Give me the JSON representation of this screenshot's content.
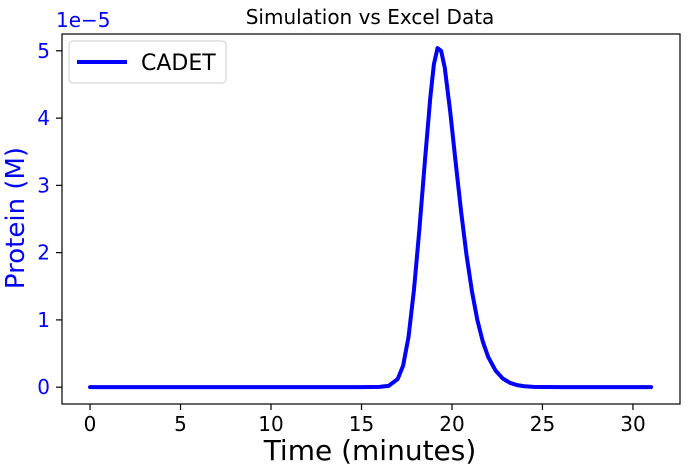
{
  "chart_data": {
    "type": "line",
    "title": "Simulation vs Excel Data",
    "xlabel": "Time (minutes)",
    "ylabel": "Protein (M)",
    "y_offset_text": "1e−5",
    "xlim": [
      -1.55,
      32.6
    ],
    "ylim": [
      -0.25,
      5.25
    ],
    "x_ticks": [
      0,
      5,
      10,
      15,
      20,
      25,
      30
    ],
    "y_ticks": [
      0,
      1,
      2,
      3,
      4,
      5
    ],
    "grid": false,
    "legend": {
      "position": "upper-left",
      "entries": [
        "CADET"
      ]
    },
    "series": [
      {
        "name": "CADET",
        "color": "#0000ff",
        "x": [
          0,
          5,
          10,
          15,
          16,
          16.5,
          17,
          17.3,
          17.6,
          17.9,
          18.2,
          18.5,
          18.8,
          19.0,
          19.2,
          19.4,
          19.6,
          19.9,
          20.2,
          20.5,
          20.8,
          21.1,
          21.4,
          21.7,
          22.0,
          22.4,
          22.8,
          23.2,
          23.6,
          24.0,
          24.5,
          25.0,
          26.0,
          27.0,
          31.0
        ],
        "y": [
          0,
          0,
          0,
          0,
          0.005,
          0.02,
          0.12,
          0.32,
          0.75,
          1.45,
          2.35,
          3.35,
          4.3,
          4.8,
          5.04,
          5.0,
          4.75,
          4.1,
          3.35,
          2.62,
          1.97,
          1.43,
          1.0,
          0.68,
          0.45,
          0.25,
          0.13,
          0.065,
          0.03,
          0.014,
          0.005,
          0.002,
          0,
          0,
          0
        ]
      }
    ]
  }
}
